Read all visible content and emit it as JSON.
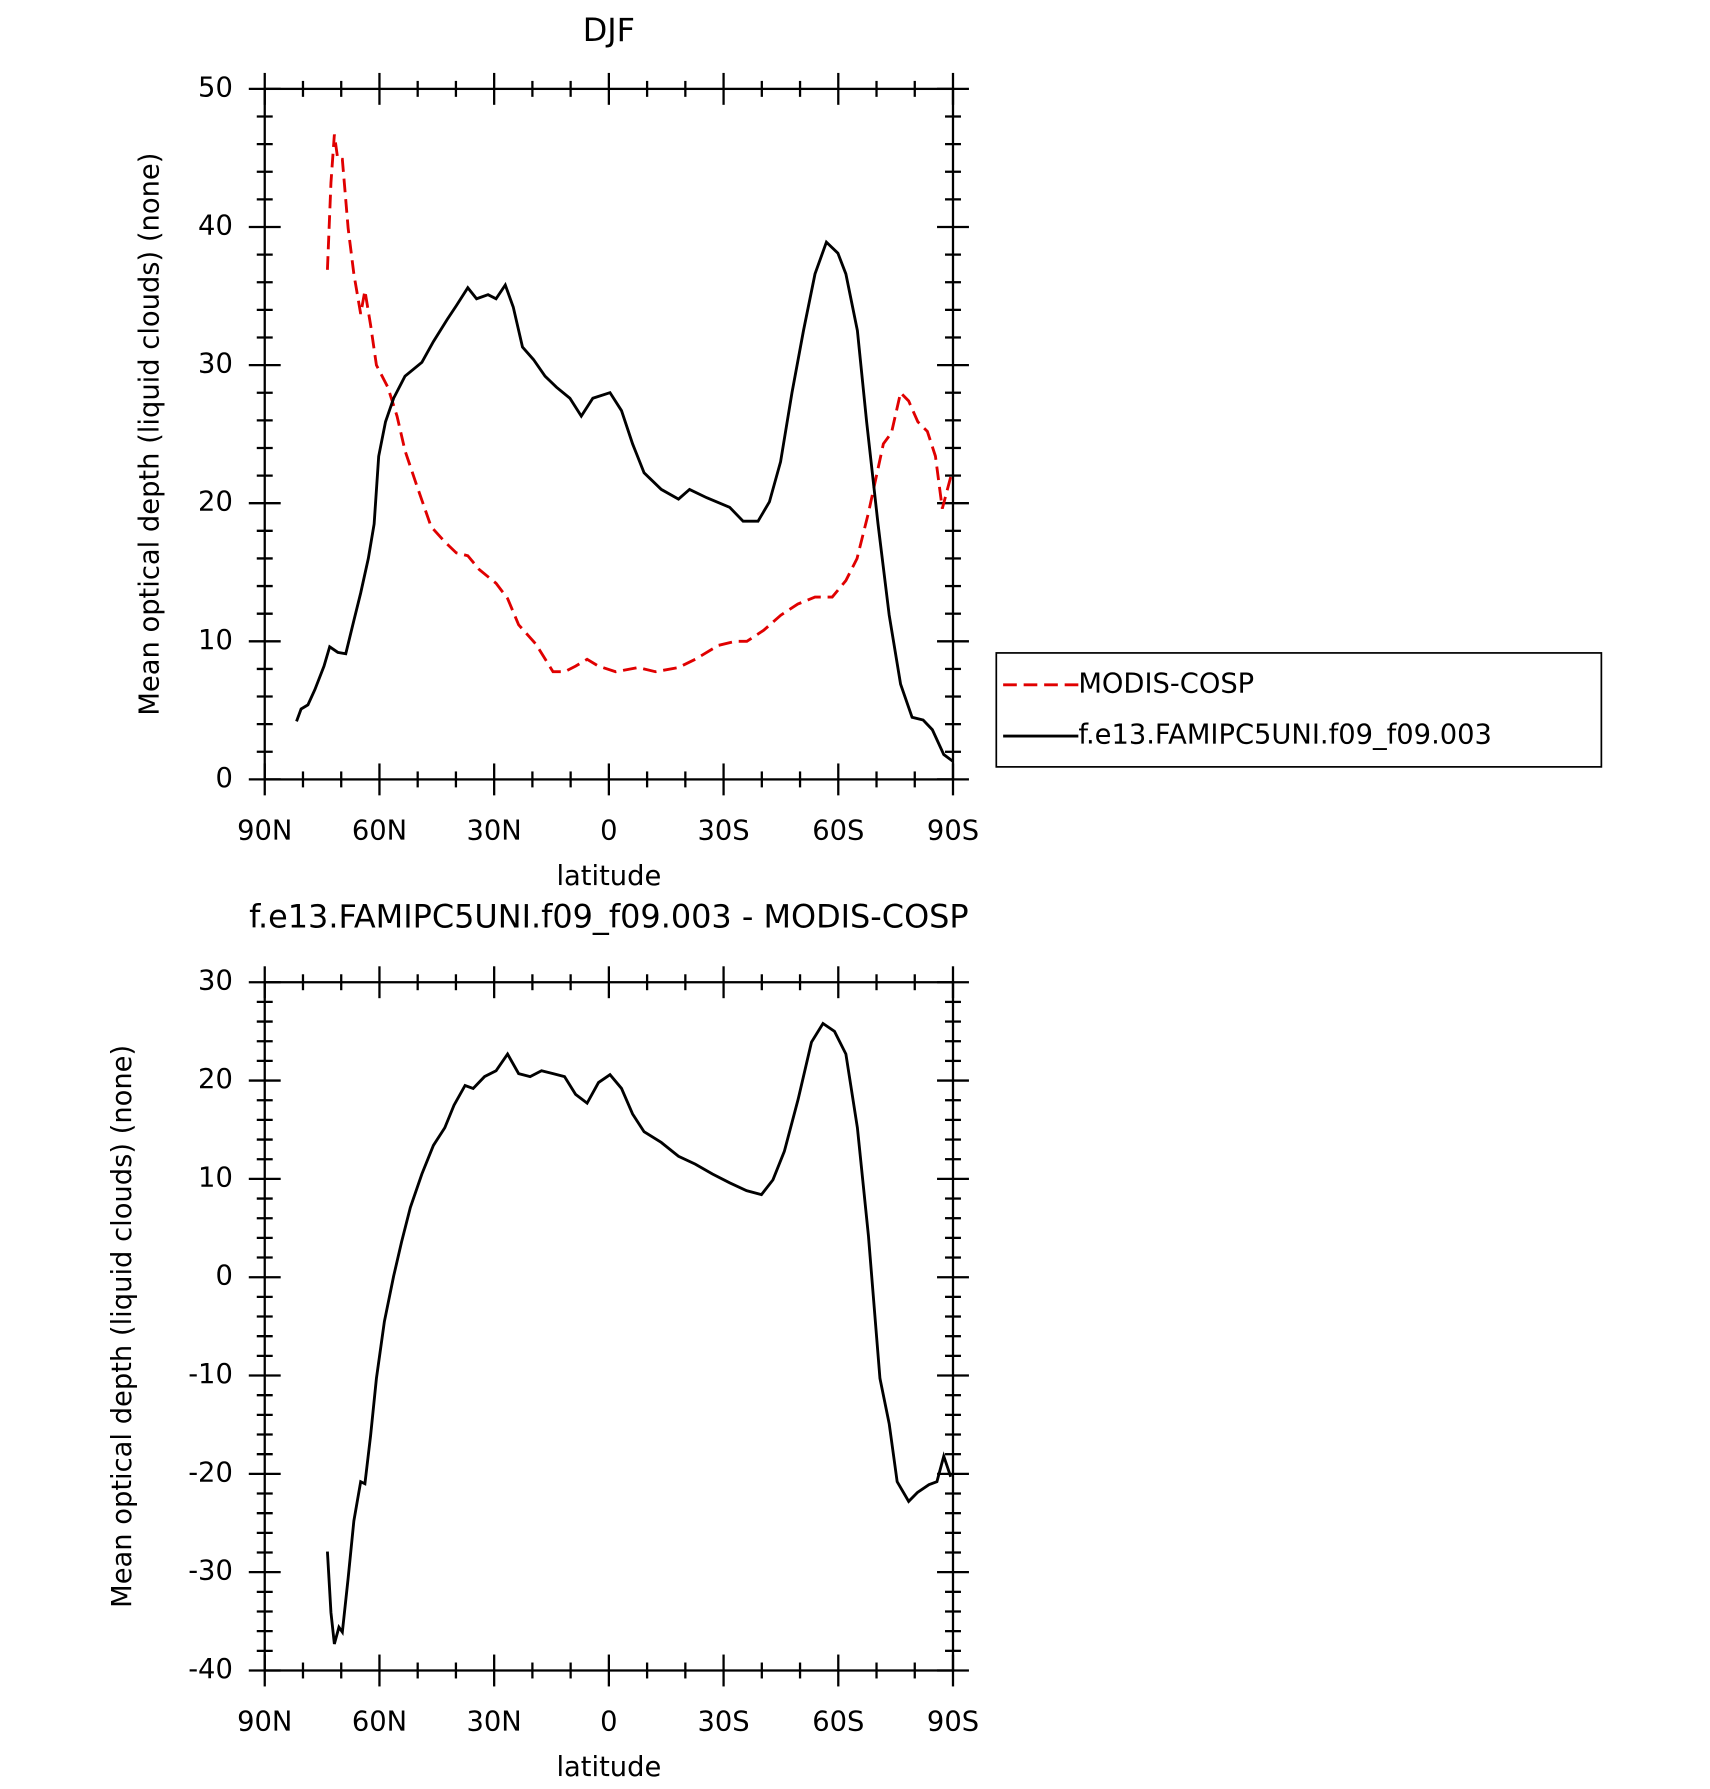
{
  "chart_data": [
    {
      "type": "line",
      "title": "DJF",
      "xlabel": "latitude",
      "ylabel": "Mean optical depth (liquid clouds) (none)",
      "xlim": [
        90,
        -90
      ],
      "xticks": [
        {
          "value": 90,
          "label": "90N"
        },
        {
          "value": 60,
          "label": "60N"
        },
        {
          "value": 30,
          "label": "30N"
        },
        0,
        {
          "value": -30,
          "label": "30S"
        },
        {
          "value": -60,
          "label": "60S"
        },
        {
          "value": -90,
          "label": "90S"
        }
      ],
      "ylim": [
        0,
        50
      ],
      "yticks": [
        0,
        10,
        20,
        30,
        40,
        50
      ],
      "legend": "right",
      "series": [
        {
          "name": "MODIS-COSP",
          "color": "#e00000",
          "dash": true,
          "x": [
            73.6,
            72.7,
            71.8,
            70.9,
            69.7,
            68.2,
            66.7,
            64.9,
            63.8,
            62.3,
            60.8,
            57.8,
            55.4,
            53.3,
            50.4,
            46.5,
            42.9,
            39.9,
            36.9,
            33.9,
            29.5,
            26.5,
            23.6,
            19.1,
            14.6,
            11.6,
            8.7,
            5.7,
            2.7,
            -1.8,
            -7.7,
            -12.2,
            -18.2,
            -22.6,
            -28.6,
            -33.1,
            -36.1,
            -40.5,
            -45.0,
            -49.4,
            -53.9,
            -58.4,
            -62.0,
            -64.9,
            -67.9,
            -71.8,
            -73.9,
            -76.3,
            -78.4,
            -80.8,
            -83.3,
            -85.4,
            -87.2,
            -89.4
          ],
          "values": [
            36.9,
            43.2,
            46.7,
            44.9,
            44.9,
            39.9,
            36.6,
            33.7,
            35.4,
            32.9,
            30.0,
            28.4,
            26.3,
            23.8,
            21.4,
            18.3,
            17.2,
            16.4,
            16.2,
            15.2,
            14.2,
            13.1,
            11.2,
            9.8,
            7.8,
            7.8,
            8.2,
            8.7,
            8.2,
            7.8,
            8.1,
            7.8,
            8.1,
            8.7,
            9.7,
            10.0,
            10.0,
            10.8,
            11.9,
            12.7,
            13.2,
            13.2,
            14.4,
            16.0,
            19.3,
            24.3,
            25.1,
            28.0,
            27.4,
            25.9,
            25.2,
            23.4,
            19.6,
            21.9
          ]
        },
        {
          "name": "f.e13.FAMIPC5UNI.f09_f09.003",
          "color": "#000000",
          "dash": false,
          "x": [
            81.7,
            80.5,
            78.7,
            76.9,
            74.5,
            73.0,
            70.9,
            68.8,
            66.7,
            64.9,
            62.9,
            61.4,
            60.2,
            58.4,
            56.3,
            53.3,
            48.9,
            45.9,
            42.3,
            39.9,
            36.9,
            34.6,
            31.6,
            29.5,
            27.1,
            25.0,
            22.6,
            19.7,
            16.7,
            13.7,
            10.2,
            7.2,
            4.2,
            -0.3,
            -3.3,
            -6.2,
            -9.2,
            -13.7,
            -18.2,
            -21.1,
            -25.6,
            -31.6,
            -35.1,
            -39.0,
            -42.0,
            -44.9,
            -47.9,
            -50.9,
            -53.9,
            -56.9,
            -59.9,
            -62.0,
            -65.0,
            -67.4,
            -70.4,
            -73.3,
            -76.3,
            -79.3,
            -82.2,
            -84.6,
            -87.6,
            -90.0
          ],
          "values": [
            4.2,
            5.1,
            5.4,
            6.5,
            8.2,
            9.6,
            9.2,
            9.1,
            11.5,
            13.5,
            16.0,
            18.5,
            23.4,
            25.9,
            27.6,
            29.2,
            30.2,
            31.7,
            33.3,
            34.3,
            35.6,
            34.8,
            35.1,
            34.8,
            35.8,
            34.2,
            31.3,
            30.4,
            29.2,
            28.4,
            27.6,
            26.3,
            27.6,
            28.0,
            26.7,
            24.3,
            22.2,
            21.0,
            20.3,
            21.0,
            20.4,
            19.7,
            18.7,
            18.7,
            20.1,
            23.0,
            28.0,
            32.5,
            36.6,
            38.9,
            38.1,
            36.6,
            32.5,
            25.9,
            18.5,
            11.9,
            6.9,
            4.5,
            4.3,
            3.6,
            1.8,
            1.3
          ]
        }
      ]
    },
    {
      "type": "line",
      "title": "f.e13.FAMIPC5UNI.f09_f09.003 - MODIS-COSP",
      "xlabel": "latitude",
      "ylabel": "Mean optical depth (liquid clouds) (none)",
      "xlim": [
        90,
        -90
      ],
      "xticks": [
        {
          "value": 90,
          "label": "90N"
        },
        {
          "value": 60,
          "label": "60N"
        },
        {
          "value": 30,
          "label": "30N"
        },
        0,
        {
          "value": -30,
          "label": "30S"
        },
        {
          "value": -60,
          "label": "60S"
        },
        {
          "value": -90,
          "label": "90S"
        }
      ],
      "ylim": [
        -40,
        30
      ],
      "yticks": [
        -40,
        -30,
        -20,
        -10,
        0,
        10,
        20,
        30
      ],
      "series": [
        {
          "color": "#000000",
          "dash": false,
          "x": [
            73.6,
            72.7,
            71.8,
            70.6,
            69.7,
            68.2,
            66.7,
            64.9,
            63.8,
            62.3,
            60.8,
            58.7,
            56.3,
            54.2,
            51.9,
            48.9,
            45.9,
            42.9,
            40.5,
            37.6,
            35.5,
            32.5,
            29.5,
            26.5,
            23.6,
            20.6,
            17.6,
            14.6,
            11.6,
            8.7,
            5.7,
            2.7,
            -0.3,
            -3.3,
            -6.2,
            -9.2,
            -13.7,
            -18.2,
            -22.6,
            -27.1,
            -31.6,
            -36.0,
            -39.9,
            -42.9,
            -45.9,
            -49.5,
            -53.0,
            -56.0,
            -59.0,
            -62.0,
            -65.0,
            -67.9,
            -70.9,
            -73.3,
            -75.4,
            -78.4,
            -80.7,
            -83.7,
            -85.8,
            -87.6,
            -89.4
          ],
          "values": [
            -27.9,
            -34.1,
            -37.3,
            -35.6,
            -36.1,
            -30.6,
            -24.8,
            -20.8,
            -21.0,
            -16.1,
            -10.3,
            -4.5,
            0.1,
            3.6,
            7.1,
            10.5,
            13.4,
            15.2,
            17.5,
            19.5,
            19.2,
            20.4,
            21.0,
            22.7,
            20.7,
            20.4,
            21.0,
            20.7,
            20.4,
            18.6,
            17.7,
            19.8,
            20.6,
            19.2,
            16.6,
            14.8,
            13.7,
            12.3,
            11.5,
            10.5,
            9.6,
            8.8,
            8.4,
            9.9,
            12.8,
            18.1,
            23.9,
            25.8,
            25.0,
            22.7,
            15.2,
            4.2,
            -10.3,
            -14.9,
            -20.8,
            -22.8,
            -21.9,
            -21.1,
            -20.8,
            -18.2,
            -20.3
          ]
        }
      ]
    }
  ]
}
